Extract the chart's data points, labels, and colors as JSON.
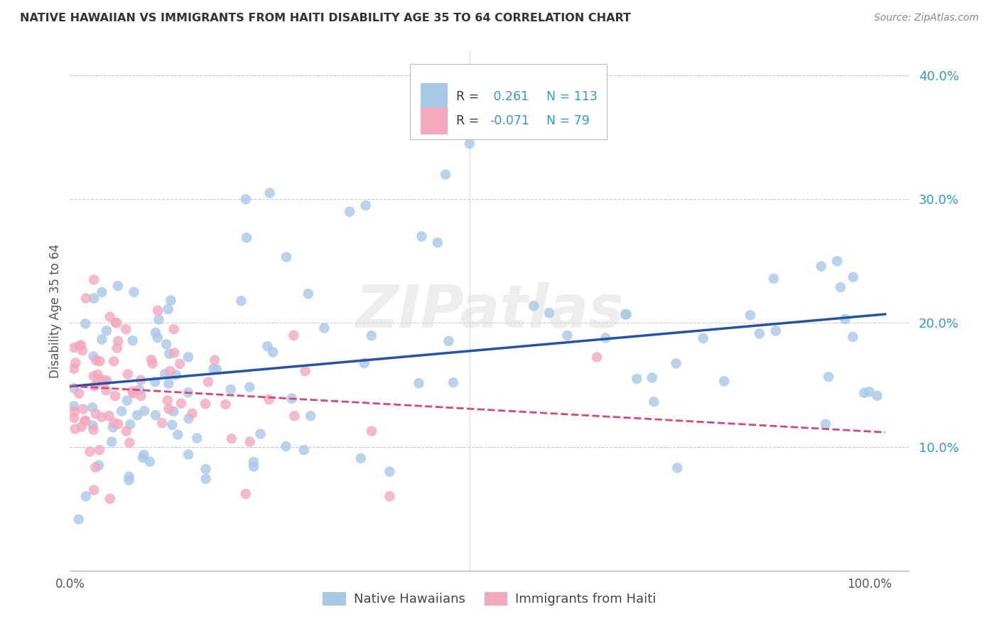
{
  "title": "NATIVE HAWAIIAN VS IMMIGRANTS FROM HAITI DISABILITY AGE 35 TO 64 CORRELATION CHART",
  "source": "Source: ZipAtlas.com",
  "ylabel": "Disability Age 35 to 64",
  "ylim": [
    0.0,
    0.42
  ],
  "xlim": [
    0.0,
    1.05
  ],
  "yticks": [
    0.1,
    0.2,
    0.3,
    0.4
  ],
  "ytick_labels": [
    "10.0%",
    "20.0%",
    "30.0%",
    "40.0%"
  ],
  "blue_R": 0.261,
  "blue_N": 113,
  "pink_R": -0.071,
  "pink_N": 79,
  "blue_color": "#a8c8e8",
  "pink_color": "#f4a8be",
  "blue_line_color": "#2255aa",
  "pink_line_color": "#dd4477",
  "legend_blue_label": "Native Hawaiians",
  "legend_pink_label": "Immigrants from Haiti",
  "watermark": "ZIPatlas",
  "background_color": "#ffffff",
  "grid_color": "#cccccc",
  "stat_text_color": "#3399cc",
  "label_text_color": "#555555"
}
